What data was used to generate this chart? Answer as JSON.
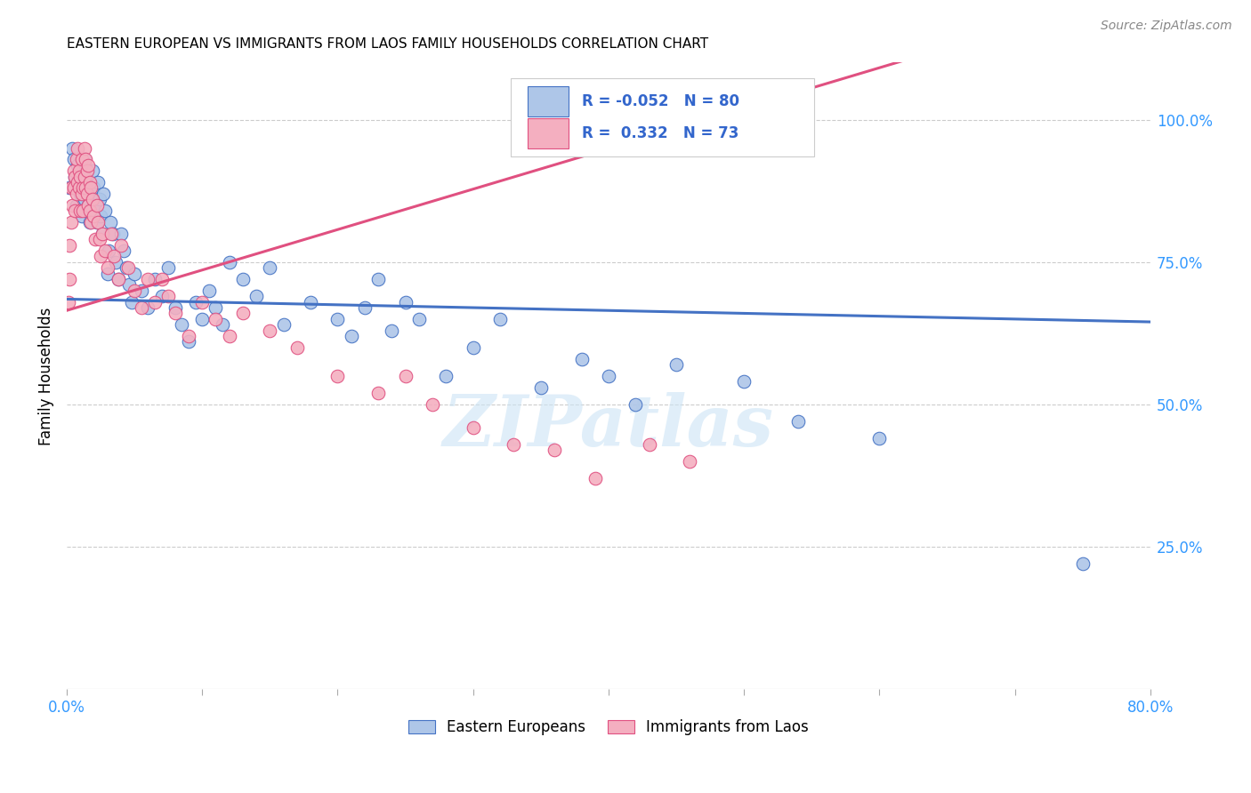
{
  "title": "EASTERN EUROPEAN VS IMMIGRANTS FROM LAOS FAMILY HOUSEHOLDS CORRELATION CHART",
  "source": "Source: ZipAtlas.com",
  "ylabel": "Family Households",
  "xlim": [
    0.0,
    0.8
  ],
  "ylim": [
    0.0,
    1.1
  ],
  "yticks": [
    0.0,
    0.25,
    0.5,
    0.75,
    1.0
  ],
  "ytick_labels": [
    "",
    "25.0%",
    "50.0%",
    "75.0%",
    "100.0%"
  ],
  "xticks": [
    0.0,
    0.1,
    0.2,
    0.3,
    0.4,
    0.5,
    0.6,
    0.7,
    0.8
  ],
  "xtick_labels": [
    "0.0%",
    "",
    "",
    "",
    "",
    "",
    "",
    "",
    "80.0%"
  ],
  "blue_color": "#aec6e8",
  "pink_color": "#f4afc0",
  "blue_line_color": "#4472c4",
  "pink_line_color": "#e05080",
  "R_blue": -0.052,
  "N_blue": 80,
  "R_pink": 0.332,
  "N_pink": 73,
  "legend_label_blue": "Eastern Europeans",
  "legend_label_pink": "Immigrants from Laos",
  "watermark": "ZIPatlas",
  "blue_line_x0": 0.0,
  "blue_line_y0": 0.685,
  "blue_line_x1": 0.8,
  "blue_line_y1": 0.645,
  "pink_line_x0": 0.0,
  "pink_line_y0": 0.665,
  "pink_line_x1": 0.5,
  "pink_line_y1": 1.02,
  "blue_x": [
    0.002,
    0.004,
    0.005,
    0.006,
    0.007,
    0.008,
    0.009,
    0.01,
    0.011,
    0.012,
    0.013,
    0.013,
    0.014,
    0.015,
    0.015,
    0.016,
    0.016,
    0.017,
    0.018,
    0.019,
    0.019,
    0.02,
    0.021,
    0.022,
    0.023,
    0.024,
    0.025,
    0.026,
    0.027,
    0.028,
    0.03,
    0.031,
    0.032,
    0.034,
    0.036,
    0.038,
    0.04,
    0.042,
    0.044,
    0.046,
    0.048,
    0.05,
    0.055,
    0.06,
    0.065,
    0.07,
    0.075,
    0.08,
    0.085,
    0.09,
    0.095,
    0.1,
    0.105,
    0.11,
    0.115,
    0.12,
    0.13,
    0.14,
    0.15,
    0.16,
    0.18,
    0.2,
    0.21,
    0.22,
    0.23,
    0.24,
    0.25,
    0.26,
    0.28,
    0.3,
    0.32,
    0.35,
    0.38,
    0.4,
    0.42,
    0.45,
    0.5,
    0.54,
    0.6,
    0.75
  ],
  "blue_y": [
    0.88,
    0.95,
    0.93,
    0.9,
    0.85,
    0.92,
    0.88,
    0.87,
    0.83,
    0.91,
    0.86,
    0.93,
    0.89,
    0.84,
    0.91,
    0.88,
    0.85,
    0.82,
    0.87,
    0.84,
    0.91,
    0.88,
    0.85,
    0.82,
    0.89,
    0.86,
    0.83,
    0.8,
    0.87,
    0.84,
    0.73,
    0.77,
    0.82,
    0.8,
    0.75,
    0.72,
    0.8,
    0.77,
    0.74,
    0.71,
    0.68,
    0.73,
    0.7,
    0.67,
    0.72,
    0.69,
    0.74,
    0.67,
    0.64,
    0.61,
    0.68,
    0.65,
    0.7,
    0.67,
    0.64,
    0.75,
    0.72,
    0.69,
    0.74,
    0.64,
    0.68,
    0.65,
    0.62,
    0.67,
    0.72,
    0.63,
    0.68,
    0.65,
    0.55,
    0.6,
    0.65,
    0.53,
    0.58,
    0.55,
    0.5,
    0.57,
    0.54,
    0.47,
    0.44,
    0.22
  ],
  "pink_x": [
    0.001,
    0.002,
    0.002,
    0.003,
    0.003,
    0.004,
    0.005,
    0.005,
    0.006,
    0.006,
    0.007,
    0.007,
    0.008,
    0.008,
    0.009,
    0.009,
    0.01,
    0.01,
    0.011,
    0.011,
    0.012,
    0.012,
    0.013,
    0.013,
    0.014,
    0.014,
    0.015,
    0.015,
    0.016,
    0.016,
    0.017,
    0.017,
    0.018,
    0.018,
    0.019,
    0.02,
    0.021,
    0.022,
    0.023,
    0.024,
    0.025,
    0.026,
    0.028,
    0.03,
    0.033,
    0.035,
    0.038,
    0.04,
    0.045,
    0.05,
    0.055,
    0.06,
    0.065,
    0.07,
    0.075,
    0.08,
    0.09,
    0.1,
    0.11,
    0.12,
    0.13,
    0.15,
    0.17,
    0.2,
    0.23,
    0.25,
    0.27,
    0.3,
    0.33,
    0.36,
    0.39,
    0.43,
    0.46
  ],
  "pink_y": [
    0.68,
    0.72,
    0.78,
    0.82,
    0.88,
    0.85,
    0.91,
    0.88,
    0.84,
    0.9,
    0.87,
    0.93,
    0.89,
    0.95,
    0.91,
    0.88,
    0.84,
    0.9,
    0.87,
    0.93,
    0.88,
    0.84,
    0.9,
    0.95,
    0.88,
    0.93,
    0.87,
    0.91,
    0.85,
    0.92,
    0.89,
    0.84,
    0.88,
    0.82,
    0.86,
    0.83,
    0.79,
    0.85,
    0.82,
    0.79,
    0.76,
    0.8,
    0.77,
    0.74,
    0.8,
    0.76,
    0.72,
    0.78,
    0.74,
    0.7,
    0.67,
    0.72,
    0.68,
    0.72,
    0.69,
    0.66,
    0.62,
    0.68,
    0.65,
    0.62,
    0.66,
    0.63,
    0.6,
    0.55,
    0.52,
    0.55,
    0.5,
    0.46,
    0.43,
    0.42,
    0.37,
    0.43,
    0.4
  ]
}
